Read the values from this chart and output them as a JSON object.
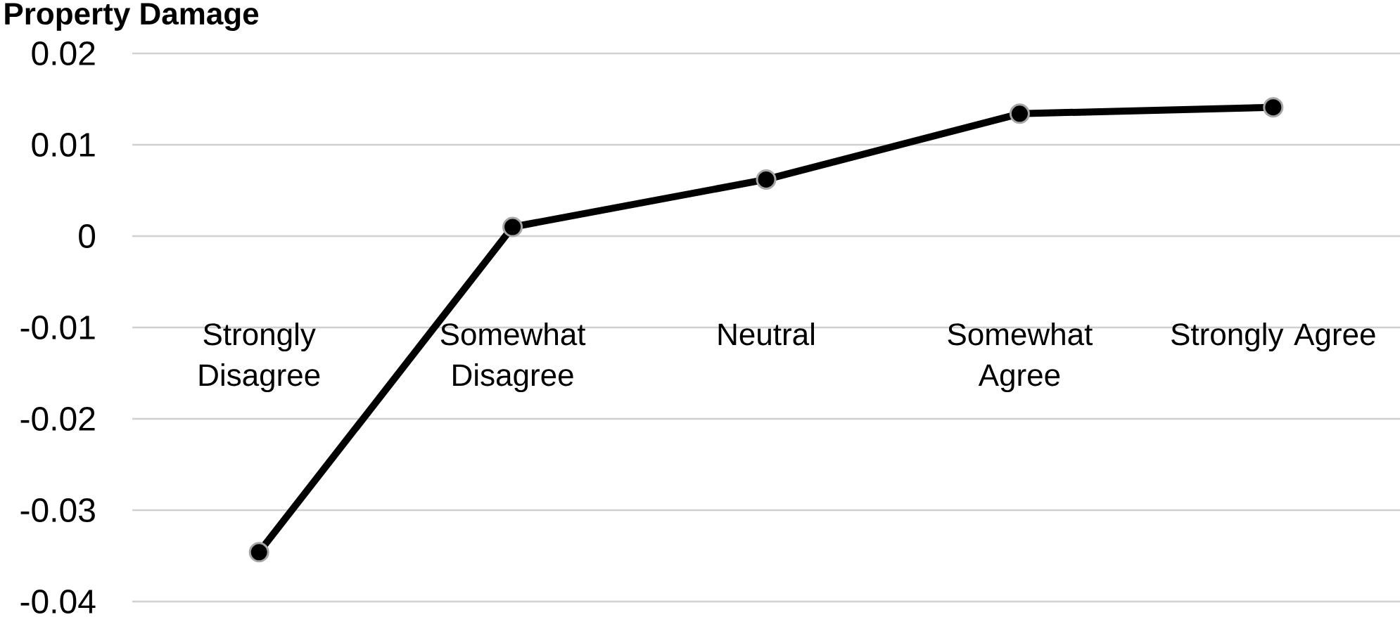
{
  "chart_data": {
    "type": "line",
    "title": "Property Damage",
    "categories": [
      "Strongly Disagree",
      "Somewhat Disagree",
      "Neutral",
      "Somewhat Agree",
      "Strongly Agree"
    ],
    "series": [
      {
        "color": "#000000",
        "values": [
          -0.0346,
          0.001,
          0.0062,
          0.0134,
          0.0141
        ]
      }
    ],
    "ylim": [
      -0.04,
      0.02
    ],
    "yticks": [
      -0.04,
      -0.03,
      -0.02,
      -0.01,
      0,
      0.01,
      0.02
    ],
    "grid": "y",
    "marker": "circle",
    "line_style": "solid"
  }
}
